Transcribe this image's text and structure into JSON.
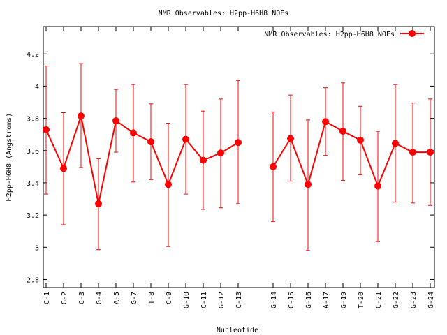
{
  "chart_data": {
    "type": "line",
    "title": "NMR Observables: H2pp-H6H8 NOEs",
    "xlabel": "Nucleotide",
    "ylabel": "H2pp-H6H8 (Angstroms)",
    "ylim": [
      2.75,
      4.37
    ],
    "xlim": [
      0.84,
      23.24
    ],
    "yticks": [
      2.8,
      3,
      3.2,
      3.4,
      3.6,
      3.8,
      4,
      4.2
    ],
    "ytick_labels": [
      "2.8",
      "3",
      "3.2",
      "3.4",
      "3.6",
      "3.8",
      "4",
      "4.2"
    ],
    "legend": {
      "label": "NMR Observables: H2pp-H6H8 NOEs",
      "placement": "top-right"
    },
    "grid": false,
    "series_color": "#ff0000",
    "errorbar_color": "#ff0000",
    "segments": [
      [
        0,
        11
      ],
      [
        12,
        21
      ]
    ],
    "points": [
      {
        "label": "C-1",
        "x": 1,
        "y": 3.73,
        "ylow": 3.33,
        "yhigh": 4.125
      },
      {
        "label": "G-2",
        "x": 2,
        "y": 3.49,
        "ylow": 3.14,
        "yhigh": 3.835
      },
      {
        "label": "C-3",
        "x": 3,
        "y": 3.815,
        "ylow": 3.495,
        "yhigh": 4.14
      },
      {
        "label": "G-4",
        "x": 4,
        "y": 3.27,
        "ylow": 2.985,
        "yhigh": 3.55
      },
      {
        "label": "A-5",
        "x": 5,
        "y": 3.785,
        "ylow": 3.59,
        "yhigh": 3.98
      },
      {
        "label": "G-7",
        "x": 6,
        "y": 3.71,
        "ylow": 3.405,
        "yhigh": 4.01
      },
      {
        "label": "T-8",
        "x": 7,
        "y": 3.655,
        "ylow": 3.42,
        "yhigh": 3.89
      },
      {
        "label": "C-9",
        "x": 8,
        "y": 3.39,
        "ylow": 3.005,
        "yhigh": 3.77
      },
      {
        "label": "G-10",
        "x": 9,
        "y": 3.67,
        "ylow": 3.33,
        "yhigh": 4.01
      },
      {
        "label": "C-11",
        "x": 10,
        "y": 3.54,
        "ylow": 3.235,
        "yhigh": 3.845
      },
      {
        "label": "G-12",
        "x": 11,
        "y": 3.585,
        "ylow": 3.245,
        "yhigh": 3.92
      },
      {
        "label": "C-13",
        "x": 12,
        "y": 3.65,
        "ylow": 3.27,
        "yhigh": 4.035
      },
      {
        "label": "G-14",
        "x": 14,
        "y": 3.5,
        "ylow": 3.16,
        "yhigh": 3.84
      },
      {
        "label": "C-15",
        "x": 15,
        "y": 3.675,
        "ylow": 3.41,
        "yhigh": 3.945
      },
      {
        "label": "G-16",
        "x": 16,
        "y": 3.39,
        "ylow": 2.98,
        "yhigh": 3.79
      },
      {
        "label": "A-17",
        "x": 17,
        "y": 3.78,
        "ylow": 3.57,
        "yhigh": 3.99
      },
      {
        "label": "G-19",
        "x": 18,
        "y": 3.72,
        "ylow": 3.415,
        "yhigh": 4.02
      },
      {
        "label": "T-20",
        "x": 19,
        "y": 3.665,
        "ylow": 3.45,
        "yhigh": 3.875
      },
      {
        "label": "C-21",
        "x": 20,
        "y": 3.38,
        "ylow": 3.035,
        "yhigh": 3.72
      },
      {
        "label": "G-22",
        "x": 21,
        "y": 3.645,
        "ylow": 3.28,
        "yhigh": 4.01
      },
      {
        "label": "G-23",
        "x": 22,
        "y": 3.59,
        "ylow": 3.275,
        "yhigh": 3.895
      },
      {
        "label": "G-24",
        "x": 23,
        "y": 3.59,
        "ylow": 3.26,
        "yhigh": 3.92
      }
    ]
  }
}
